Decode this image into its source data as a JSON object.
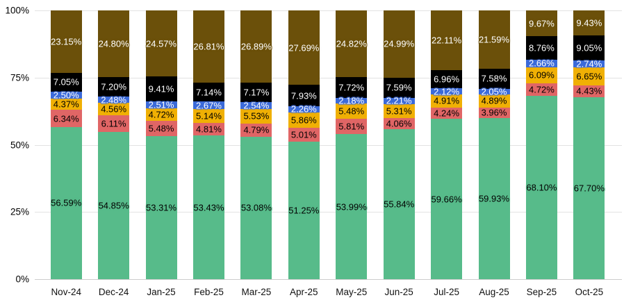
{
  "chart_data": {
    "type": "bar",
    "stacked": true,
    "percent_stacked": true,
    "title": "",
    "xlabel": "",
    "ylabel": "",
    "legend": "none",
    "grid": true,
    "value_suffix": "%",
    "background_color": "#ffffff",
    "gridline_color": "#e2e2e2",
    "axis_text_color": "#000000",
    "y_axis": {
      "min": 0,
      "max": 100,
      "ticks_top_to_bottom": [
        "100%",
        "75%",
        "50%",
        "25%",
        "0%"
      ]
    },
    "categories": [
      "Nov-24",
      "Dec-24",
      "Jan-25",
      "Feb-25",
      "Mar-25",
      "Apr-25",
      "May-25",
      "Jun-25",
      "Jul-25",
      "Aug-25",
      "Sep-25",
      "Oct-25"
    ],
    "series": [
      {
        "name": "green",
        "color": "#57BB8A",
        "label_color": "#000000",
        "values": [
          56.59,
          54.85,
          53.31,
          53.43,
          53.08,
          51.25,
          53.99,
          55.84,
          59.66,
          59.93,
          68.1,
          67.7
        ]
      },
      {
        "name": "red",
        "color": "#E06666",
        "label_color": "#000000",
        "values": [
          6.34,
          6.11,
          5.48,
          4.81,
          4.79,
          5.01,
          5.81,
          4.06,
          4.24,
          3.96,
          4.72,
          4.43
        ]
      },
      {
        "name": "yellow",
        "color": "#F0B005",
        "label_color": "#000000",
        "values": [
          4.37,
          4.56,
          4.72,
          5.14,
          5.53,
          5.86,
          5.48,
          5.31,
          4.91,
          4.89,
          6.09,
          6.65
        ]
      },
      {
        "name": "blue",
        "color": "#3C6BD9",
        "label_color": "#FFFFFF",
        "values": [
          2.5,
          2.48,
          2.51,
          2.67,
          2.54,
          2.26,
          2.18,
          2.21,
          2.12,
          2.05,
          2.66,
          2.74
        ]
      },
      {
        "name": "black",
        "color": "#000000",
        "label_color": "#FFFFFF",
        "values": [
          7.05,
          7.2,
          9.41,
          7.14,
          7.17,
          7.93,
          7.72,
          7.59,
          6.96,
          7.58,
          8.76,
          9.05
        ]
      },
      {
        "name": "brown",
        "color": "#6B500A",
        "label_color": "#FFFFFF",
        "values": [
          23.15,
          24.8,
          24.57,
          26.81,
          26.89,
          27.69,
          24.82,
          24.99,
          22.11,
          21.59,
          9.67,
          9.43
        ]
      }
    ]
  }
}
